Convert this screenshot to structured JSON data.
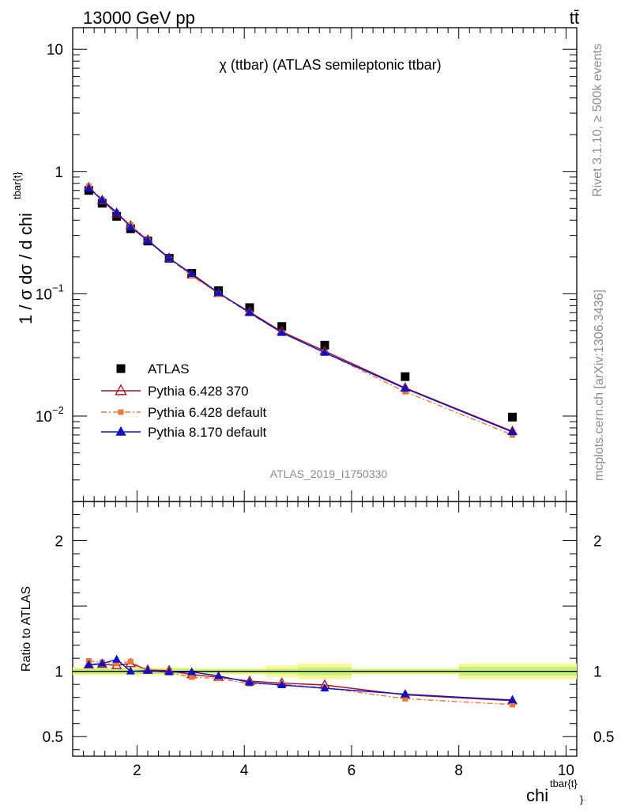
{
  "header": {
    "energy_label": "13000 GeV pp",
    "process_label": "tt̄"
  },
  "side": {
    "rivet_label": "Rivet 3.1.10, ≥ 500k events",
    "source_label": "mcplots.cern.ch [arXiv:1306.3436]"
  },
  "chart_data": {
    "type": "line",
    "title": "χ (ttbar) (ATLAS semileptonic ttbar)",
    "analysis_id": "ATLAS_2019_I1750330",
    "ylabel_main": "1 / σ dσ / d chi",
    "ylabel_main_superscript": "tbar{t}",
    "ylabel_ratio": "Ratio to ATLAS",
    "xlabel": "chi",
    "xlabel_superscript": "tbar{t}",
    "xlabel_sub_glyph": "}",
    "xlim": [
      0.8,
      10.2
    ],
    "ylim_main": [
      0.002,
      15
    ],
    "yscale_main": "log",
    "ylim_ratio": [
      0.35,
      2.3
    ],
    "x_ticks": [
      "2",
      "4",
      "6",
      "8",
      "10"
    ],
    "y_ticks_main": [
      {
        "value": 10,
        "label": "10"
      },
      {
        "value": 1,
        "label": "1"
      },
      {
        "value": 0.1,
        "label": "10",
        "exp": "−1"
      },
      {
        "value": 0.01,
        "label": "10",
        "exp": "−2"
      }
    ],
    "y_ticks_ratio": [
      "0.5",
      "1",
      "2"
    ],
    "legend_position": "bottom-left",
    "x": [
      1.1,
      1.35,
      1.62,
      1.88,
      2.2,
      2.6,
      3.02,
      3.52,
      4.1,
      4.7,
      5.5,
      7.0,
      9.0
    ],
    "series": [
      {
        "name": "ATLAS",
        "color": "#000000",
        "marker": "square",
        "values": [
          0.7,
          0.55,
          0.43,
          0.34,
          0.27,
          0.195,
          0.147,
          0.106,
          0.077,
          0.054,
          0.038,
          0.021,
          0.0098
        ]
      },
      {
        "name": "Pythia 6.428 370",
        "color": "#a01020",
        "marker": "open-triangle",
        "values": [
          0.74,
          0.58,
          0.45,
          0.36,
          0.275,
          0.196,
          0.143,
          0.101,
          0.071,
          0.049,
          0.034,
          0.017,
          0.0075
        ],
        "ratio": [
          1.05,
          1.055,
          1.045,
          1.06,
          1.01,
          1.005,
          0.975,
          0.955,
          0.925,
          0.91,
          0.895,
          0.82,
          0.775
        ]
      },
      {
        "name": "Pythia 6.428 default",
        "color": "#f07830",
        "marker": "square",
        "values": [
          0.76,
          0.59,
          0.46,
          0.365,
          0.272,
          0.193,
          0.14,
          0.1,
          0.069,
          0.048,
          0.033,
          0.0158,
          0.007
        ],
        "ratio": [
          1.08,
          1.07,
          1.06,
          1.075,
          1.005,
          0.99,
          0.955,
          0.945,
          0.905,
          0.9,
          0.875,
          0.79,
          0.745
        ]
      },
      {
        "name": "Pythia 8.170 default",
        "color": "#1010c8",
        "marker": "triangle",
        "values": [
          0.73,
          0.585,
          0.465,
          0.35,
          0.272,
          0.195,
          0.146,
          0.102,
          0.07,
          0.048,
          0.033,
          0.0168,
          0.0074
        ],
        "ratio": [
          1.05,
          1.06,
          1.09,
          1.0,
          1.005,
          0.995,
          0.995,
          0.965,
          0.915,
          0.895,
          0.87,
          0.825,
          0.78
        ]
      }
    ],
    "uncertainty_band": [
      {
        "x0": 0.8,
        "x1": 3.0,
        "inner": 0.02,
        "outer": 0.03
      },
      {
        "x0": 3.0,
        "x1": 4.4,
        "inner": 0.015,
        "outer": 0.025
      },
      {
        "x0": 4.4,
        "x1": 5.0,
        "inner": 0.02,
        "outer": 0.045
      },
      {
        "x0": 5.0,
        "x1": 6.0,
        "inner": 0.03,
        "outer": 0.06
      },
      {
        "x0": 6.0,
        "x1": 8.0,
        "inner": 0.015,
        "outer": 0.025
      },
      {
        "x0": 8.0,
        "x1": 10.2,
        "inner": 0.035,
        "outer": 0.06
      }
    ]
  }
}
